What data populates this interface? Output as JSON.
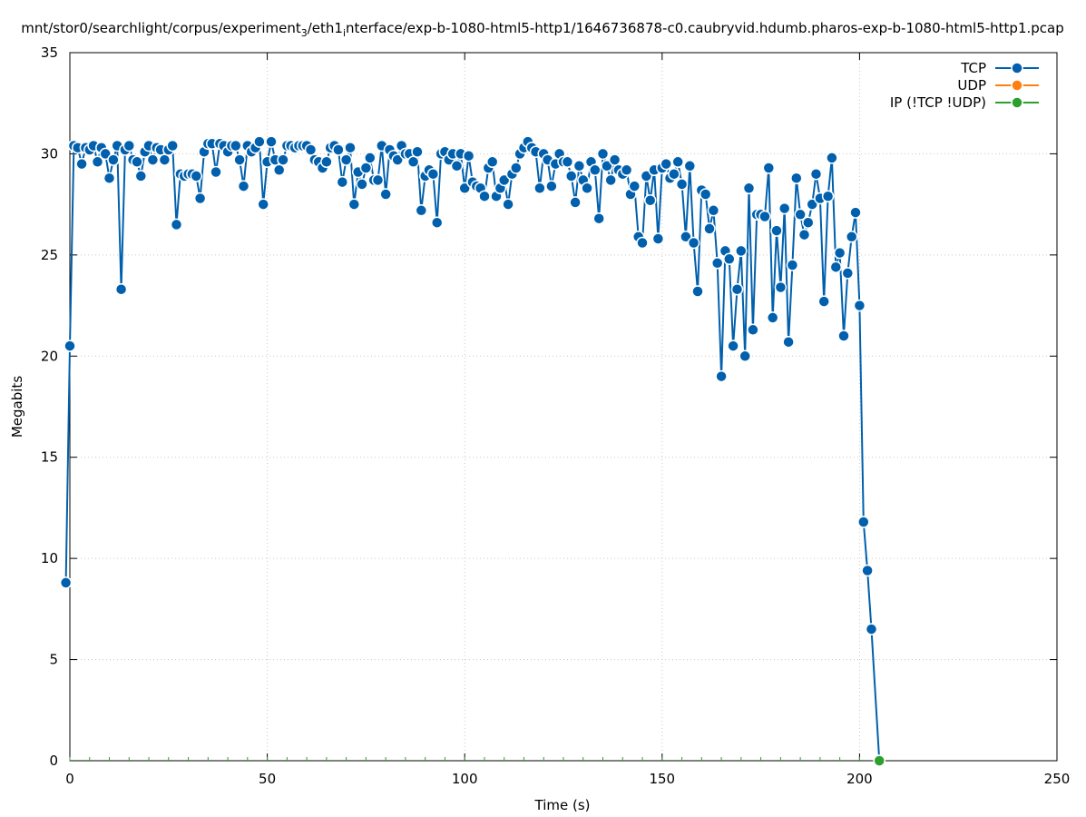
{
  "chart_data": {
    "type": "line",
    "title": "mnt/stor0/searchlight/corpus/experiment",
    "title_sub": "3",
    "title_rest": "/eth1",
    "title_sub2": "i",
    "title_end": "nterface/exp-b-1080-html5-http1/1646736878-c0.caubryvid.hdumb.pharos-exp-b-1080-html5-http1.pcap",
    "xlabel": "Time (s)",
    "ylabel": "Megabits",
    "xlim": [
      0,
      250
    ],
    "ylim": [
      0,
      35
    ],
    "xticks": [
      "0",
      "50",
      "100",
      "150",
      "200",
      "250"
    ],
    "yticks": [
      "0",
      "5",
      "10",
      "15",
      "20",
      "25",
      "30",
      "35"
    ],
    "grid": true,
    "legend_position": "top-right",
    "series": [
      {
        "name": "TCP",
        "color": "#0060ad",
        "points": [
          [
            -1,
            8.8
          ],
          [
            0,
            20.5
          ],
          [
            1,
            30.4
          ],
          [
            2,
            30.3
          ],
          [
            3,
            29.5
          ],
          [
            4,
            30.3
          ],
          [
            5,
            30.2
          ],
          [
            6,
            30.4
          ],
          [
            7,
            29.6
          ],
          [
            8,
            30.3
          ],
          [
            9,
            30.0
          ],
          [
            10,
            28.8
          ],
          [
            11,
            29.7
          ],
          [
            12,
            30.4
          ],
          [
            13,
            23.3
          ],
          [
            14,
            30.2
          ],
          [
            15,
            30.4
          ],
          [
            16,
            29.7
          ],
          [
            17,
            29.6
          ],
          [
            18,
            28.9
          ],
          [
            19,
            30.1
          ],
          [
            20,
            30.4
          ],
          [
            21,
            29.7
          ],
          [
            22,
            30.3
          ],
          [
            23,
            30.2
          ],
          [
            24,
            29.7
          ],
          [
            25,
            30.2
          ],
          [
            26,
            30.4
          ],
          [
            27,
            26.5
          ],
          [
            28,
            29.0
          ],
          [
            29,
            28.9
          ],
          [
            30,
            29.0
          ],
          [
            31,
            29.0
          ],
          [
            32,
            28.9
          ],
          [
            33,
            27.8
          ],
          [
            34,
            30.1
          ],
          [
            35,
            30.5
          ],
          [
            36,
            30.5
          ],
          [
            37,
            29.1
          ],
          [
            38,
            30.5
          ],
          [
            39,
            30.4
          ],
          [
            40,
            30.1
          ],
          [
            41,
            30.4
          ],
          [
            42,
            30.4
          ],
          [
            43,
            29.7
          ],
          [
            44,
            28.4
          ],
          [
            45,
            30.4
          ],
          [
            46,
            30.1
          ],
          [
            47,
            30.3
          ],
          [
            48,
            30.6
          ],
          [
            49,
            27.5
          ],
          [
            50,
            29.6
          ],
          [
            51,
            30.6
          ],
          [
            52,
            29.7
          ],
          [
            53,
            29.2
          ],
          [
            54,
            29.7
          ],
          [
            55,
            30.4
          ],
          [
            56,
            30.4
          ],
          [
            57,
            30.3
          ],
          [
            58,
            30.4
          ],
          [
            59,
            30.4
          ],
          [
            60,
            30.4
          ],
          [
            61,
            30.2
          ],
          [
            62,
            29.7
          ],
          [
            63,
            29.6
          ],
          [
            64,
            29.3
          ],
          [
            65,
            29.6
          ],
          [
            66,
            30.3
          ],
          [
            67,
            30.4
          ],
          [
            68,
            30.2
          ],
          [
            69,
            28.6
          ],
          [
            70,
            29.7
          ],
          [
            71,
            30.3
          ],
          [
            72,
            27.5
          ],
          [
            73,
            29.1
          ],
          [
            74,
            28.5
          ],
          [
            75,
            29.3
          ],
          [
            76,
            29.8
          ],
          [
            77,
            28.7
          ],
          [
            78,
            28.7
          ],
          [
            79,
            30.4
          ],
          [
            80,
            28.0
          ],
          [
            81,
            30.2
          ],
          [
            82,
            29.9
          ],
          [
            83,
            29.7
          ],
          [
            84,
            30.4
          ],
          [
            85,
            30.0
          ],
          [
            86,
            30.0
          ],
          [
            87,
            29.6
          ],
          [
            88,
            30.1
          ],
          [
            89,
            27.2
          ],
          [
            90,
            28.9
          ],
          [
            91,
            29.2
          ],
          [
            92,
            29.0
          ],
          [
            93,
            26.6
          ],
          [
            94,
            30.0
          ],
          [
            95,
            30.1
          ],
          [
            96,
            29.7
          ],
          [
            97,
            30.0
          ],
          [
            98,
            29.4
          ],
          [
            99,
            30.0
          ],
          [
            100,
            28.3
          ],
          [
            101,
            29.9
          ],
          [
            102,
            28.6
          ],
          [
            103,
            28.4
          ],
          [
            104,
            28.3
          ],
          [
            105,
            27.9
          ],
          [
            106,
            29.3
          ],
          [
            107,
            29.6
          ],
          [
            108,
            27.9
          ],
          [
            109,
            28.3
          ],
          [
            110,
            28.7
          ],
          [
            111,
            27.5
          ],
          [
            112,
            29.0
          ],
          [
            113,
            29.3
          ],
          [
            114,
            30.0
          ],
          [
            115,
            30.3
          ],
          [
            116,
            30.6
          ],
          [
            117,
            30.3
          ],
          [
            118,
            30.1
          ],
          [
            119,
            28.3
          ],
          [
            120,
            30.0
          ],
          [
            121,
            29.7
          ],
          [
            122,
            28.4
          ],
          [
            123,
            29.5
          ],
          [
            124,
            30.0
          ],
          [
            125,
            29.6
          ],
          [
            126,
            29.6
          ],
          [
            127,
            28.9
          ],
          [
            128,
            27.6
          ],
          [
            129,
            29.4
          ],
          [
            130,
            28.7
          ],
          [
            131,
            28.3
          ],
          [
            132,
            29.6
          ],
          [
            133,
            29.2
          ],
          [
            134,
            26.8
          ],
          [
            135,
            30.0
          ],
          [
            136,
            29.4
          ],
          [
            137,
            28.7
          ],
          [
            138,
            29.7
          ],
          [
            139,
            29.2
          ],
          [
            140,
            29.0
          ],
          [
            141,
            29.2
          ],
          [
            142,
            28.0
          ],
          [
            143,
            28.4
          ],
          [
            144,
            25.9
          ],
          [
            145,
            25.6
          ],
          [
            146,
            28.9
          ],
          [
            147,
            27.7
          ],
          [
            148,
            29.2
          ],
          [
            149,
            25.8
          ],
          [
            150,
            29.3
          ],
          [
            151,
            29.5
          ],
          [
            152,
            28.8
          ],
          [
            153,
            29.0
          ],
          [
            154,
            29.6
          ],
          [
            155,
            28.5
          ],
          [
            156,
            25.9
          ],
          [
            157,
            29.4
          ],
          [
            158,
            25.6
          ],
          [
            159,
            23.2
          ],
          [
            160,
            28.2
          ],
          [
            161,
            28.0
          ],
          [
            162,
            26.3
          ],
          [
            163,
            27.2
          ],
          [
            164,
            24.6
          ],
          [
            165,
            19.0
          ],
          [
            166,
            25.2
          ],
          [
            167,
            24.8
          ],
          [
            168,
            20.5
          ],
          [
            169,
            23.3
          ],
          [
            170,
            25.2
          ],
          [
            171,
            20.0
          ],
          [
            172,
            28.3
          ],
          [
            173,
            21.3
          ],
          [
            174,
            27.0
          ],
          [
            175,
            27.0
          ],
          [
            176,
            26.9
          ],
          [
            177,
            29.3
          ],
          [
            178,
            21.9
          ],
          [
            179,
            26.2
          ],
          [
            180,
            23.4
          ],
          [
            181,
            27.3
          ],
          [
            182,
            20.7
          ],
          [
            183,
            24.5
          ],
          [
            184,
            28.8
          ],
          [
            185,
            27.0
          ],
          [
            186,
            26.0
          ],
          [
            187,
            26.6
          ],
          [
            188,
            27.5
          ],
          [
            189,
            29.0
          ],
          [
            190,
            27.8
          ],
          [
            191,
            22.7
          ],
          [
            192,
            27.9
          ],
          [
            193,
            29.8
          ],
          [
            194,
            24.4
          ],
          [
            195,
            25.1
          ],
          [
            196,
            21.0
          ],
          [
            197,
            24.1
          ],
          [
            198,
            25.9
          ],
          [
            199,
            27.1
          ],
          [
            200,
            22.5
          ],
          [
            201,
            11.8
          ],
          [
            202,
            9.4
          ],
          [
            203,
            6.5
          ],
          [
            205,
            0.0
          ]
        ]
      },
      {
        "name": "UDP",
        "color": "#ff7f0e",
        "points": []
      },
      {
        "name": "IP (!TCP  !UDP)",
        "color": "#2ca02c",
        "points": [
          [
            205,
            0.0
          ]
        ]
      }
    ]
  }
}
